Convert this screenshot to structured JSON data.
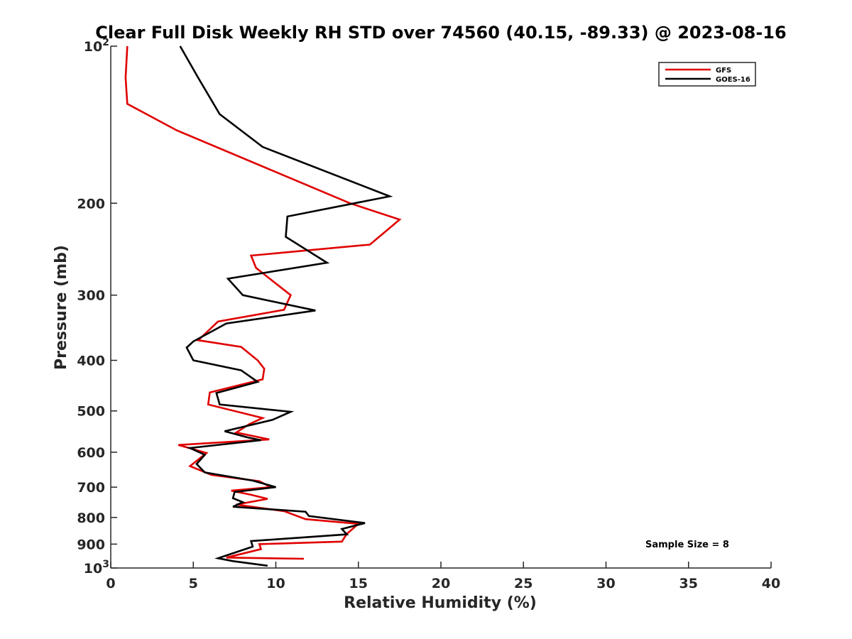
{
  "chart_data": {
    "type": "line",
    "title": "Clear Full Disk Weekly RH STD over 74560 (40.15, -89.33) @ 2023-08-16",
    "xlabel": "Relative Humidity (%)",
    "ylabel": "Pressure (mb)",
    "xlim": [
      0,
      40
    ],
    "ylim": [
      100,
      1000
    ],
    "yscale": "log",
    "y_reversed": true,
    "grid": false,
    "legend_position": "top-right",
    "x_ticks": [
      "0",
      "5",
      "10",
      "15",
      "20",
      "25",
      "30",
      "35",
      "40"
    ],
    "y_ticks": [
      {
        "label": "10",
        "sup": "2"
      },
      {
        "label": "200"
      },
      {
        "label": "300"
      },
      {
        "label": "400"
      },
      {
        "label": "500"
      },
      {
        "label": "600"
      },
      {
        "label": "700"
      },
      {
        "label": "800"
      },
      {
        "label": "900"
      },
      {
        "label": "10",
        "sup": "3"
      }
    ],
    "y_tick_values": [
      100,
      200,
      300,
      400,
      500,
      600,
      700,
      800,
      900,
      1000
    ],
    "annotation": "Sample Size = 8",
    "series": [
      {
        "name": "GFS",
        "color": "#e00000",
        "x": [
          1.0,
          0.9,
          1.0,
          4.0,
          14.5,
          17.5,
          15.7,
          8.5,
          8.8,
          10.9,
          10.5,
          6.5,
          5.3,
          7.9,
          8.9,
          9.3,
          9.2,
          6.0,
          5.9,
          9.2,
          8.4,
          7.6,
          9.6,
          4.1,
          5.8,
          4.8,
          6.1,
          9.0,
          9.7,
          7.3,
          8.5,
          9.5,
          7.6,
          10.5,
          11.8,
          15.0,
          14.3,
          14.0,
          9.0,
          9.1,
          7.0,
          11.7
        ],
        "y": [
          100,
          115,
          129,
          145,
          200,
          215,
          240,
          252,
          266,
          300,
          320,
          337,
          366,
          377,
          400,
          415,
          435,
          461,
          486,
          516,
          530,
          550,
          567,
          581,
          602,
          638,
          663,
          682,
          700,
          711,
          724,
          737,
          756,
          778,
          806,
          823,
          860,
          890,
          900,
          920,
          955,
          960
        ]
      },
      {
        "name": "GOES-16",
        "color": "#000000",
        "x": [
          4.2,
          5.3,
          6.6,
          9.2,
          16.9,
          10.7,
          10.6,
          13.1,
          7.1,
          8.0,
          12.4,
          7.0,
          5.0,
          4.6,
          5.0,
          7.9,
          8.9,
          6.4,
          6.6,
          10.9,
          9.8,
          6.9,
          8.3,
          9.1,
          4.8,
          5.7,
          5.2,
          5.7,
          8.6,
          10.0,
          7.5,
          7.4,
          8.0,
          7.4,
          11.8,
          12.0,
          15.4,
          14.0,
          14.3,
          8.5,
          8.6,
          6.5,
          7.4,
          9.5
        ],
        "y": [
          100,
          115,
          135,
          156,
          194,
          212,
          232,
          260,
          279,
          300,
          321,
          340,
          368,
          378,
          400,
          418,
          440,
          462,
          486,
          502,
          520,
          547,
          562,
          569,
          589,
          607,
          632,
          656,
          680,
          700,
          715,
          735,
          748,
          763,
          780,
          795,
          820,
          842,
          862,
          888,
          910,
          958,
          970,
          990
        ]
      }
    ]
  }
}
